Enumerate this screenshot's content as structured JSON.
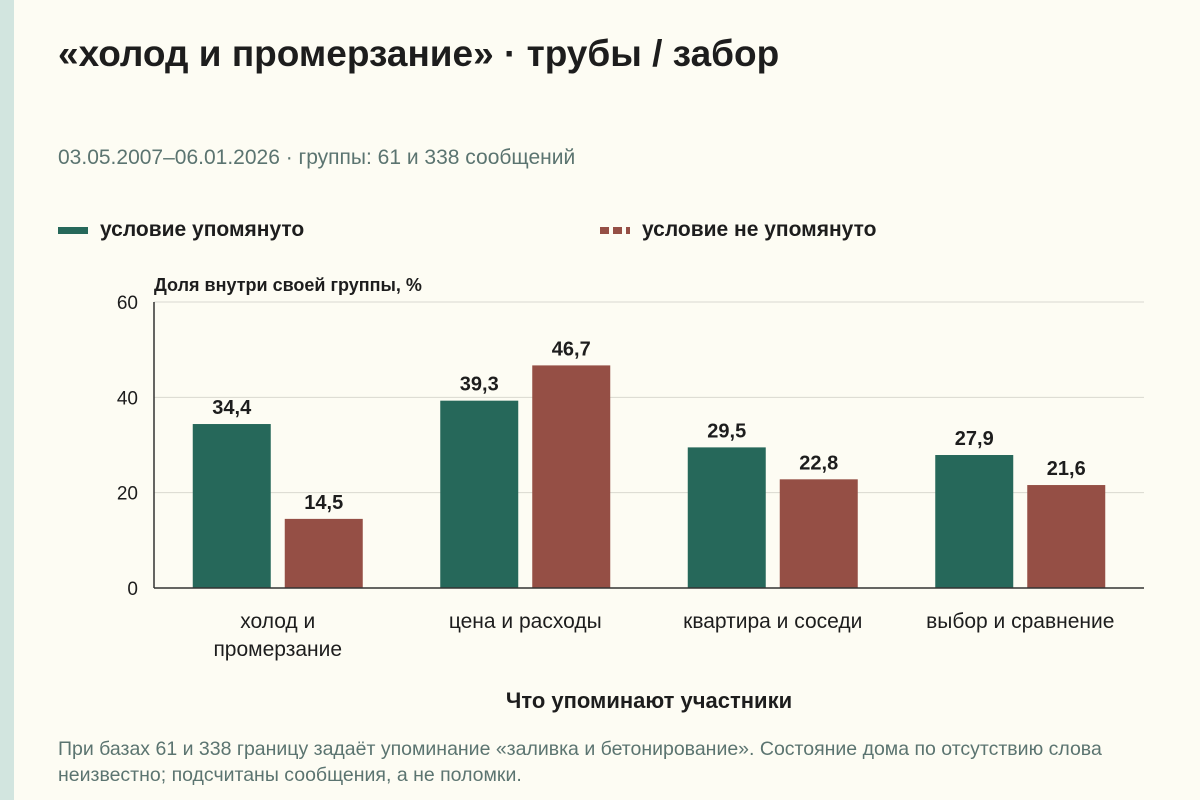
{
  "header": {
    "title": "«холод и промерзание» · трубы / забор",
    "subtitle": "03.05.2007–06.01.2026 · группы: 61 и 338 сообщений"
  },
  "legend": {
    "items": [
      {
        "label": "условие упомянуто",
        "color": "#26685a",
        "style": "solid"
      },
      {
        "label": "условие не упомянуто",
        "color": "#954f45",
        "style": "dashed"
      }
    ]
  },
  "note": "При базах 61 и 338 границу задаёт упоминание «заливка и бетонирование». Состояние дома по отсутствию слова неизвестно; подсчитаны сообщения, а не поломки.",
  "chart_data": {
    "type": "bar",
    "title": "«холод и промерзание» · трубы / забор",
    "subtitle": "03.05.2007–06.01.2026 · группы: 61 и 338 сообщений",
    "ylabel": "Доля внутри своей группы, %",
    "xlabel": "Что упоминают участники",
    "ylim": [
      0,
      60
    ],
    "yticks": [
      0,
      20,
      40,
      60
    ],
    "grid": true,
    "legend_position": "top",
    "categories": [
      [
        "холод и",
        "промерзание"
      ],
      [
        "цена и расходы"
      ],
      [
        "квартира и соседи"
      ],
      [
        "выбор и сравнение"
      ]
    ],
    "series": [
      {
        "name": "условие упомянуто",
        "color": "#26685a",
        "values": [
          34.4,
          39.3,
          29.5,
          27.9
        ],
        "labels": [
          "34,4",
          "39,3",
          "29,5",
          "27,9"
        ]
      },
      {
        "name": "условие не упомянуто",
        "color": "#954f45",
        "values": [
          14.5,
          46.7,
          22.8,
          21.6
        ],
        "labels": [
          "14,5",
          "46,7",
          "22,8",
          "21,6"
        ]
      }
    ]
  }
}
